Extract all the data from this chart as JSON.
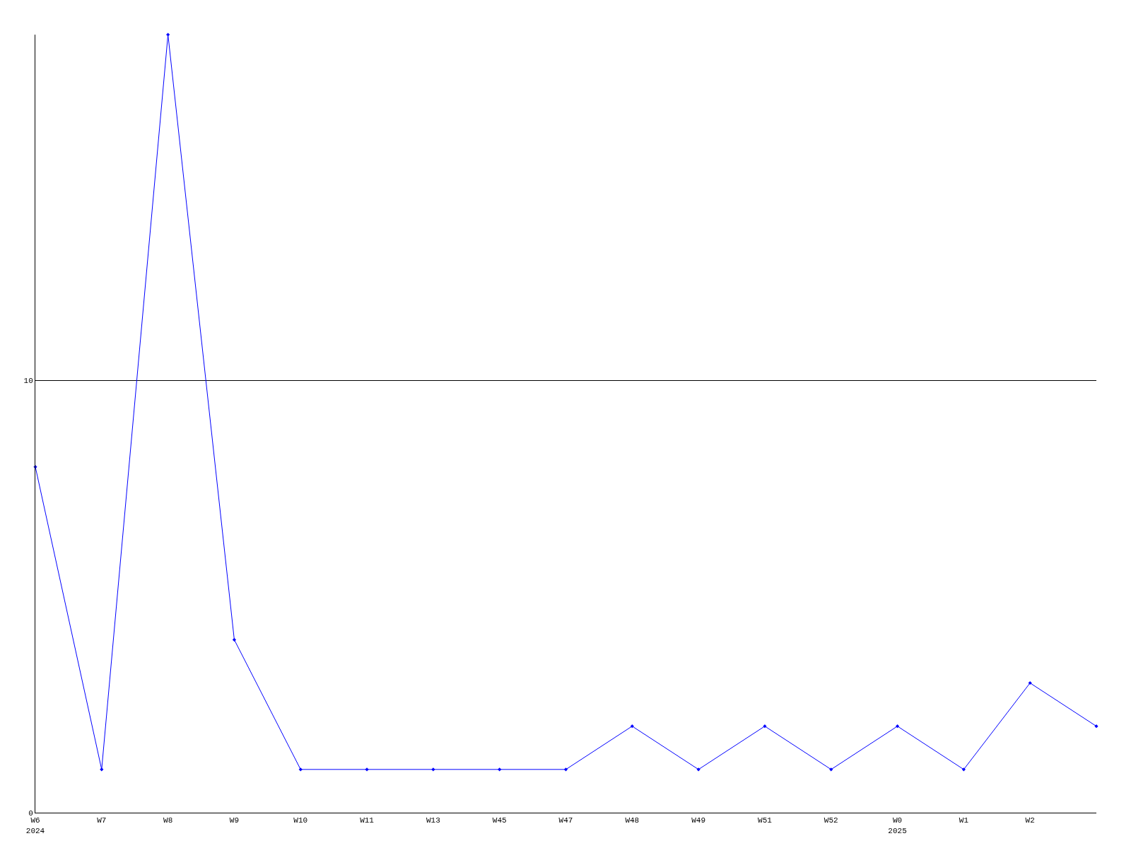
{
  "chart_data": {
    "type": "line",
    "categories": [
      "W6\n2024",
      "W7",
      "W8",
      "W9",
      "W10",
      "W11",
      "W13",
      "W45",
      "W47",
      "W48",
      "W49",
      "W51",
      "W52",
      "W0\n2025",
      "W1",
      "W2",
      null
    ],
    "series": [
      {
        "color": "#0000ff",
        "values": [
          8,
          1,
          18,
          4,
          1,
          1,
          1,
          1,
          1,
          2,
          1,
          2,
          1,
          2,
          1,
          3,
          2
        ]
      }
    ],
    "ylim": [
      0,
      18
    ],
    "yticks": [
      0,
      10
    ],
    "grid": "y",
    "marker": "diamond",
    "line_style": "solid"
  }
}
